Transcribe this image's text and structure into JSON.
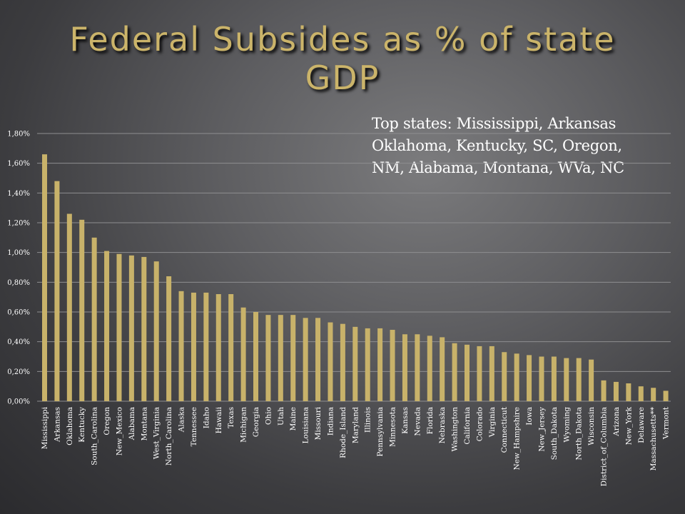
{
  "slide": {
    "title": "Federal Subsides as % of state GDP",
    "note_lines": [
      "Top states: Mississippi, Arkansas",
      "Oklahoma, Kentucky, SC, Oregon,",
      "NM, Alabama, Montana, WVa, NC"
    ]
  },
  "colors": {
    "bar": "#c8b26a",
    "grid": "#8e8e90",
    "text": "#ffffff",
    "title": "#cbb46a"
  },
  "chart_data": {
    "type": "bar",
    "title": "",
    "xlabel": "",
    "ylabel": "",
    "ylim": [
      0,
      1.8
    ],
    "yticks": [
      "0,00%",
      "0,20%",
      "0,40%",
      "0,60%",
      "0,80%",
      "1,00%",
      "1,20%",
      "1,40%",
      "1,60%",
      "1,80%"
    ],
    "grid": true,
    "categories": [
      "Mississippi",
      "Arkansas",
      "Oklahoma",
      "Kentucky",
      "South_Carolina",
      "Oregon",
      "New_Mexico",
      "Alabama",
      "Montana",
      "West_Virginia",
      "North_Carolina",
      "Alaska",
      "Tennessee",
      "Idaho",
      "Hawaii",
      "Texas",
      "Michigan",
      "Georgia",
      "Ohio",
      "Utah",
      "Maine",
      "Louisiana",
      "Missouri",
      "Indiana",
      "Rhode_Island",
      "Maryland",
      "Illinois",
      "Pennsylvania",
      "Minnesota",
      "Kansas",
      "Nevada",
      "Florida",
      "Nebraska",
      "Washington",
      "California",
      "Colorado",
      "Virginia",
      "Connecticut",
      "New_Hampshire",
      "Iowa",
      "New_Jersey",
      "South_Dakota",
      "Wyoming",
      "North_Dakota",
      "Wisconsin",
      "District_of_Columbia",
      "Arizona",
      "New_York",
      "Delaware",
      "Massachusetts**",
      "Vermont"
    ],
    "values": [
      1.66,
      1.48,
      1.26,
      1.22,
      1.1,
      1.01,
      0.99,
      0.98,
      0.97,
      0.94,
      0.84,
      0.74,
      0.73,
      0.73,
      0.72,
      0.72,
      0.63,
      0.6,
      0.58,
      0.58,
      0.58,
      0.56,
      0.56,
      0.53,
      0.52,
      0.5,
      0.49,
      0.49,
      0.48,
      0.45,
      0.45,
      0.44,
      0.43,
      0.39,
      0.38,
      0.37,
      0.37,
      0.33,
      0.32,
      0.31,
      0.3,
      0.3,
      0.29,
      0.29,
      0.28,
      0.14,
      0.13,
      0.12,
      0.1,
      0.09,
      0.07
    ]
  }
}
